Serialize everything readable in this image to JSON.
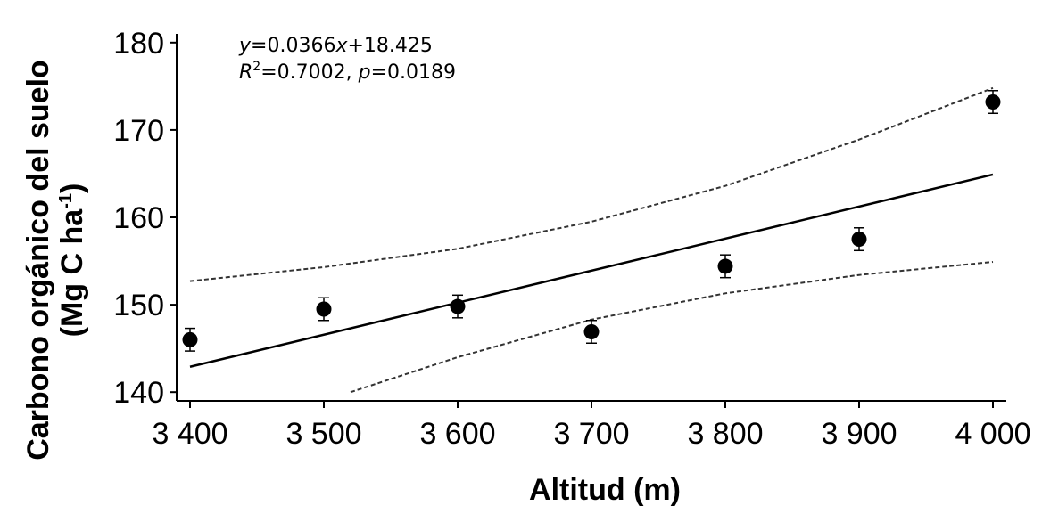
{
  "chart_data": {
    "type": "scatter",
    "title": "",
    "xlabel": "Altitud (m)",
    "ylabel_line1": "Carbono orgánico del suelo",
    "ylabel_line2_prefix": "(Mg C ha",
    "ylabel_line2_sup": "-1",
    "ylabel_line2_suffix": ")",
    "xlim": [
      3390,
      4010
    ],
    "ylim": [
      139,
      181
    ],
    "x_ticks": [
      {
        "value": 3400,
        "label": "3 400"
      },
      {
        "value": 3500,
        "label": "3 500"
      },
      {
        "value": 3600,
        "label": "3 600"
      },
      {
        "value": 3700,
        "label": "3 700"
      },
      {
        "value": 3800,
        "label": "3 800"
      },
      {
        "value": 3900,
        "label": "3 900"
      },
      {
        "value": 4000,
        "label": "4 000"
      }
    ],
    "y_ticks": [
      {
        "value": 140,
        "label": "140"
      },
      {
        "value": 150,
        "label": "150"
      },
      {
        "value": 160,
        "label": "160"
      },
      {
        "value": 170,
        "label": "170"
      },
      {
        "value": 180,
        "label": "180"
      }
    ],
    "points": [
      {
        "x": 3400,
        "y": 146.0,
        "err": 1.3
      },
      {
        "x": 3500,
        "y": 149.5,
        "err": 1.3
      },
      {
        "x": 3600,
        "y": 149.8,
        "err": 1.3
      },
      {
        "x": 3700,
        "y": 146.9,
        "err": 1.3
      },
      {
        "x": 3800,
        "y": 154.4,
        "err": 1.3
      },
      {
        "x": 3900,
        "y": 157.5,
        "err": 1.3
      },
      {
        "x": 4000,
        "y": 173.2,
        "err": 1.3
      }
    ],
    "fit_line": [
      {
        "x": 3400,
        "y": 142.9
      },
      {
        "x": 4000,
        "y": 164.9
      }
    ],
    "confidence_upper": [
      {
        "x": 3400,
        "y": 152.7
      },
      {
        "x": 3500,
        "y": 154.3
      },
      {
        "x": 3600,
        "y": 156.4
      },
      {
        "x": 3700,
        "y": 159.5
      },
      {
        "x": 3800,
        "y": 163.6
      },
      {
        "x": 3900,
        "y": 168.9
      },
      {
        "x": 4000,
        "y": 174.8
      }
    ],
    "confidence_lower": [
      {
        "x": 3520,
        "y": 140.0
      },
      {
        "x": 3600,
        "y": 144.0
      },
      {
        "x": 3700,
        "y": 148.3
      },
      {
        "x": 3800,
        "y": 151.3
      },
      {
        "x": 3900,
        "y": 153.4
      },
      {
        "x": 4000,
        "y": 154.9
      }
    ],
    "equation": {
      "line1": {
        "y": "y",
        "eq": "=0.0366",
        "x": "x",
        "rest": "+18.425"
      },
      "line2": {
        "r": "R",
        "sup": "2",
        "rval": "=0.7002, ",
        "p": "p",
        "pval": "=0.0189"
      }
    },
    "grid": false,
    "legend": "none"
  }
}
